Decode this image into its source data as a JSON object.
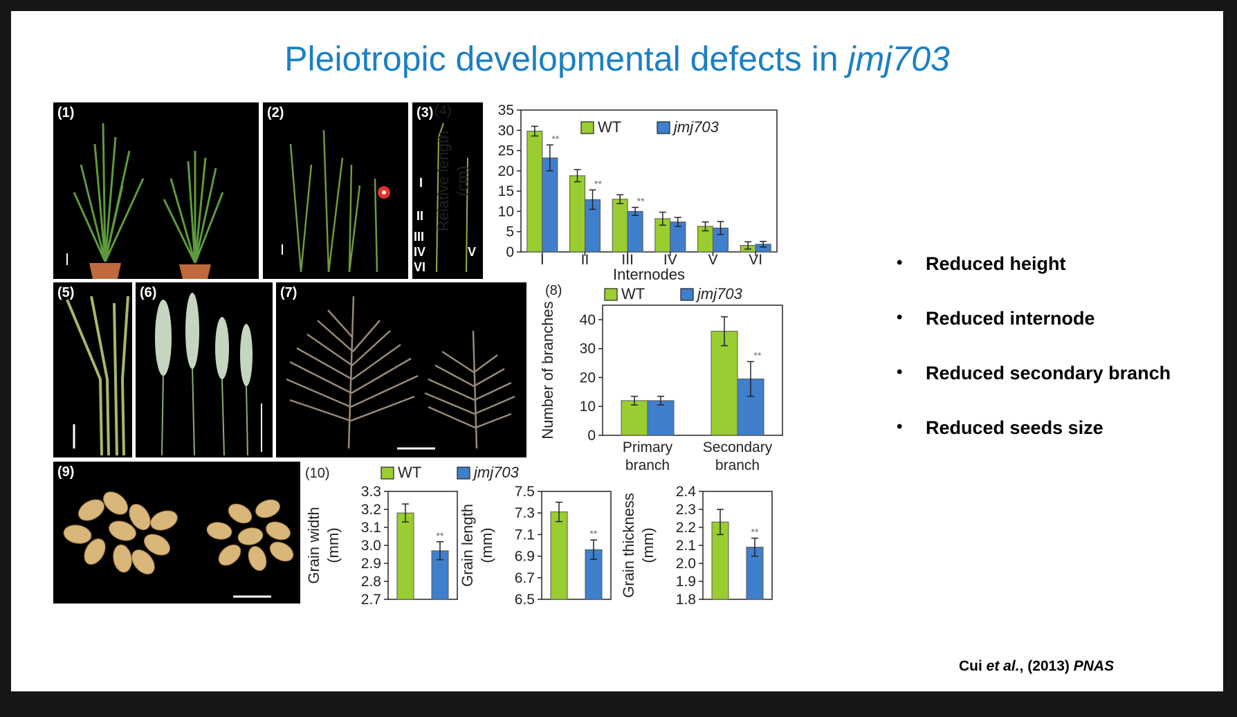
{
  "title": {
    "text": "Pleiotropic developmental defects in ",
    "italic": "jmj703"
  },
  "panels": {
    "p1": "(1)",
    "p2": "(2)",
    "p3": "(3)",
    "p5": "(5)",
    "p6": "(6)",
    "p7": "(7)",
    "p9": "(9)",
    "internode_marks": [
      "I",
      "II",
      "III",
      "IV",
      "VI",
      "V"
    ]
  },
  "bullets": [
    "Reduced height",
    "Reduced internode",
    "Reduced secondary branch",
    "Reduced seeds size"
  ],
  "citation": {
    "author": "Cui",
    "etal": "et al.",
    "year": ", (2013) ",
    "journal": "PNAS"
  },
  "colors": {
    "wt": "#9acd32",
    "mutant": "#3f7fcc",
    "title": "#1b7fc4"
  },
  "chart_data": [
    {
      "id": "internodes",
      "panel_label": "(4)",
      "type": "bar",
      "categories": [
        "I",
        "II",
        "III",
        "IV",
        "V",
        "VI"
      ],
      "series": [
        {
          "name": "WT",
          "values": [
            29.8,
            18.8,
            13.0,
            8.2,
            6.3,
            1.6
          ],
          "errors": [
            1.2,
            1.5,
            1.1,
            1.6,
            1.1,
            0.9
          ]
        },
        {
          "name": "jmj703",
          "values": [
            23.2,
            12.9,
            10.0,
            7.4,
            5.9,
            1.9
          ],
          "errors": [
            3.2,
            2.4,
            1.0,
            1.1,
            1.6,
            0.7
          ]
        }
      ],
      "significance": [
        "**",
        "**",
        "**",
        "",
        "",
        ""
      ],
      "ylabel": [
        "Relative length",
        "(cm)"
      ],
      "xlabel": "Internodes",
      "ylim": [
        0,
        35
      ],
      "yticks": [
        0,
        5,
        10,
        15,
        20,
        25,
        30,
        35
      ],
      "legend": "top"
    },
    {
      "id": "branches",
      "panel_label": "(8)",
      "type": "bar",
      "categories": [
        [
          "Primary",
          "branch"
        ],
        [
          "Secondary",
          "branch"
        ]
      ],
      "series": [
        {
          "name": "WT",
          "values": [
            12.0,
            36.0
          ],
          "errors": [
            1.5,
            5.0
          ]
        },
        {
          "name": "jmj703",
          "values": [
            12.0,
            19.5
          ],
          "errors": [
            1.5,
            6.0
          ]
        }
      ],
      "significance": [
        "",
        "**"
      ],
      "ylabel": [
        "Number of branches"
      ],
      "xlabel": "",
      "ylim": [
        0,
        45
      ],
      "yticks": [
        0,
        10,
        20,
        30,
        40
      ],
      "legend": "top"
    },
    {
      "id": "grain_width",
      "panel_label": "(10)",
      "type": "bar",
      "series": [
        {
          "name": "WT",
          "values": [
            3.18
          ],
          "errors": [
            0.05
          ]
        },
        {
          "name": "jmj703",
          "values": [
            2.97
          ],
          "errors": [
            0.05
          ]
        }
      ],
      "significance": [
        "**"
      ],
      "ylabel": [
        "Grain width",
        "(mm)"
      ],
      "ylim": [
        2.7,
        3.3
      ],
      "yticks": [
        "2.7",
        "2.8",
        "2.9",
        "3.0",
        "3.1",
        "3.2",
        "3.3"
      ],
      "legend": "top"
    },
    {
      "id": "grain_length",
      "type": "bar",
      "series": [
        {
          "name": "WT",
          "values": [
            7.31
          ],
          "errors": [
            0.09
          ]
        },
        {
          "name": "jmj703",
          "values": [
            6.96
          ],
          "errors": [
            0.09
          ]
        }
      ],
      "significance": [
        "**"
      ],
      "ylabel": [
        "Grain length",
        "(mm)"
      ],
      "ylim": [
        6.5,
        7.5
      ],
      "yticks": [
        "6.5",
        "6.7",
        "6.9",
        "7.1",
        "7.3",
        "7.5"
      ]
    },
    {
      "id": "grain_thickness",
      "type": "bar",
      "series": [
        {
          "name": "WT",
          "values": [
            2.23
          ],
          "errors": [
            0.07
          ]
        },
        {
          "name": "jmj703",
          "values": [
            2.09
          ],
          "errors": [
            0.05
          ]
        }
      ],
      "significance": [
        "**"
      ],
      "ylabel": [
        "Grain thickness",
        "(mm)"
      ],
      "ylim": [
        1.8,
        2.4
      ],
      "yticks": [
        "1.8",
        "1.9",
        "2.0",
        "2.1",
        "2.2",
        "2.3",
        "2.4"
      ]
    }
  ]
}
